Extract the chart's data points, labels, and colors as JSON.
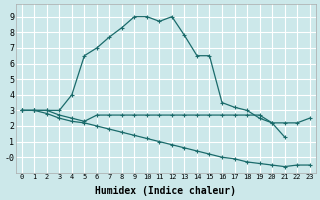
{
  "xlabel": "Humidex (Indice chaleur)",
  "bg_color": "#cce8ea",
  "grid_color": "#ffffff",
  "line_color": "#1a6b6b",
  "xlim": [
    -0.5,
    23.5
  ],
  "ylim": [
    -1.0,
    9.8
  ],
  "xticks": [
    0,
    1,
    2,
    3,
    4,
    5,
    6,
    7,
    8,
    9,
    10,
    11,
    12,
    13,
    14,
    15,
    16,
    17,
    18,
    19,
    20,
    21,
    22,
    23
  ],
  "yticks": [
    0,
    1,
    2,
    3,
    4,
    5,
    6,
    7,
    8,
    9
  ],
  "ytick_labels": [
    "-0",
    "1",
    "2",
    "3",
    "4",
    "5",
    "6",
    "7",
    "8",
    "9"
  ],
  "line1_x": [
    0,
    1,
    2,
    3,
    4,
    5,
    6,
    7,
    8,
    9,
    10,
    11,
    12,
    13,
    14,
    15,
    16,
    17,
    18,
    19,
    20,
    21
  ],
  "line1_y": [
    3.0,
    3.0,
    3.0,
    3.0,
    4.0,
    6.5,
    7.0,
    7.7,
    8.3,
    9.0,
    9.0,
    8.7,
    9.0,
    7.8,
    6.5,
    6.5,
    3.5,
    3.2,
    3.0,
    2.5,
    2.2,
    1.3
  ],
  "line2_x": [
    0,
    1,
    2,
    3,
    4,
    5,
    6,
    7,
    8,
    9,
    10,
    11,
    12,
    13,
    14,
    15,
    16,
    17,
    18,
    19,
    20,
    21,
    22,
    23
  ],
  "line2_y": [
    3.0,
    3.0,
    3.0,
    2.7,
    2.5,
    2.3,
    2.7,
    2.7,
    2.7,
    2.7,
    2.7,
    2.7,
    2.7,
    2.7,
    2.7,
    2.7,
    2.7,
    2.7,
    2.7,
    2.7,
    2.2,
    2.2,
    2.2,
    2.5
  ],
  "line3_x": [
    0,
    1,
    2,
    3,
    4,
    5,
    6,
    7,
    8,
    9,
    10,
    11,
    12,
    13,
    14,
    15,
    16,
    17,
    18,
    19,
    20,
    21,
    22,
    23
  ],
  "line3_y": [
    3.0,
    3.0,
    2.8,
    2.5,
    2.3,
    2.2,
    2.0,
    1.8,
    1.6,
    1.4,
    1.2,
    1.0,
    0.8,
    0.6,
    0.4,
    0.2,
    0.0,
    -0.1,
    -0.3,
    -0.4,
    -0.5,
    -0.6,
    -0.5,
    -0.5
  ]
}
